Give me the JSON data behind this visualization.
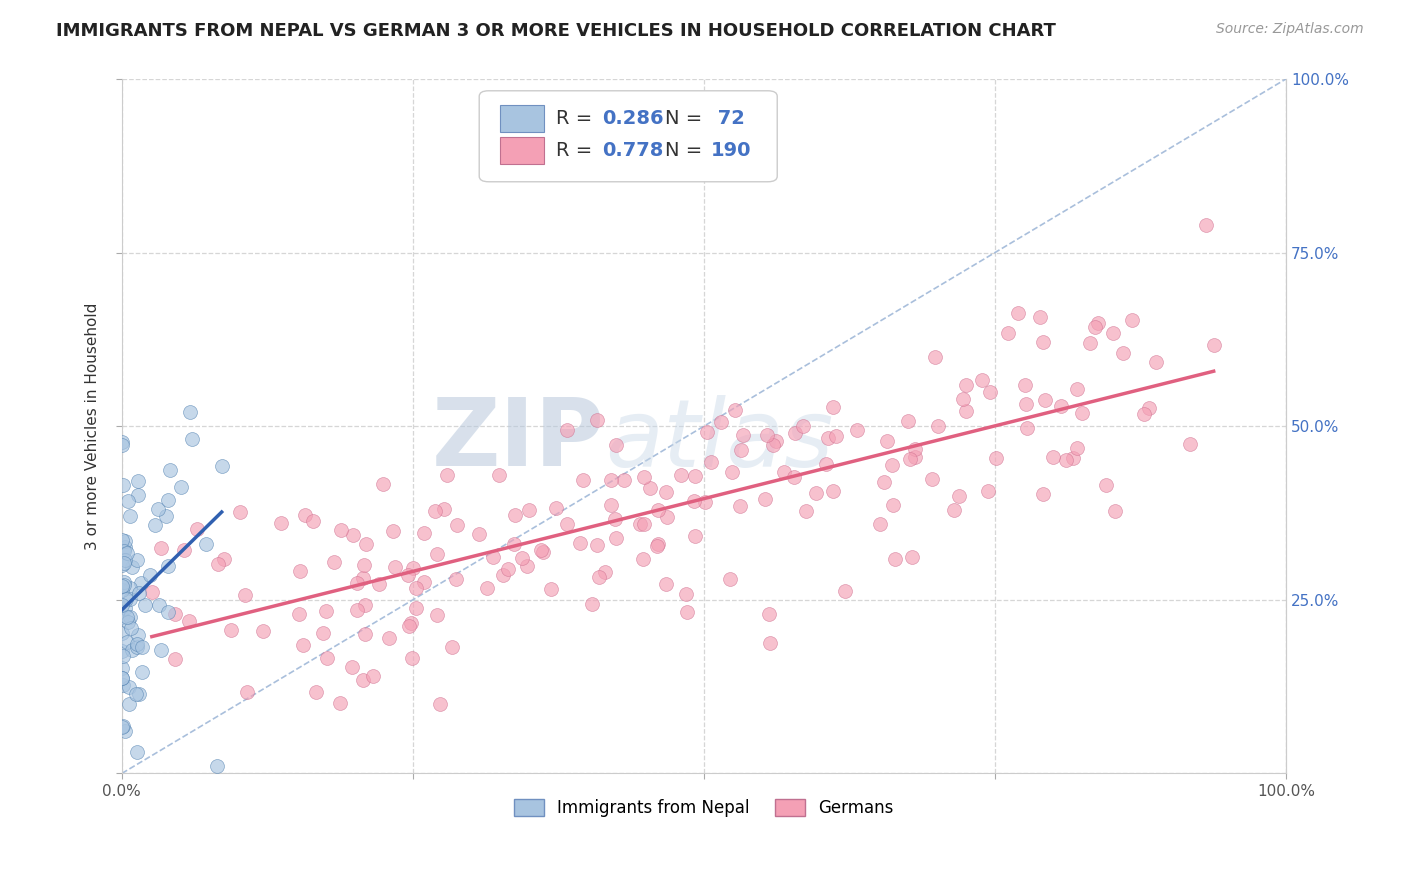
{
  "title": "IMMIGRANTS FROM NEPAL VS GERMAN 3 OR MORE VEHICLES IN HOUSEHOLD CORRELATION CHART",
  "source_text": "Source: ZipAtlas.com",
  "ylabel": "3 or more Vehicles in Household",
  "xlim": [
    0.0,
    1.0
  ],
  "ylim": [
    0.0,
    1.0
  ],
  "x_ticks": [
    0.0,
    0.25,
    0.5,
    0.75,
    1.0
  ],
  "y_ticks": [
    0.0,
    0.25,
    0.5,
    0.75,
    1.0
  ],
  "x_tick_labels": [
    "0.0%",
    "",
    "",
    "",
    "100.0%"
  ],
  "y_tick_labels": [
    "",
    "25.0%",
    "50.0%",
    "75.0%",
    "100.0%"
  ],
  "background_color": "#ffffff",
  "grid_color": "#cccccc",
  "nepal_color": "#a8c4e0",
  "german_color": "#f4a0b5",
  "nepal_line_color": "#3060b0",
  "german_line_color": "#e06080",
  "diagonal_color": "#a0b8d8",
  "title_fontsize": 13,
  "axis_label_fontsize": 11,
  "tick_fontsize": 11,
  "legend_fontsize": 14,
  "source_fontsize": 10,
  "nepal_seed": 42,
  "german_seed": 7,
  "nepal_R": 0.286,
  "german_R": 0.778,
  "N_nepal": 72,
  "N_german": 190,
  "watermark_color": "#c8d8ec",
  "right_tick_color": "#4472c4"
}
